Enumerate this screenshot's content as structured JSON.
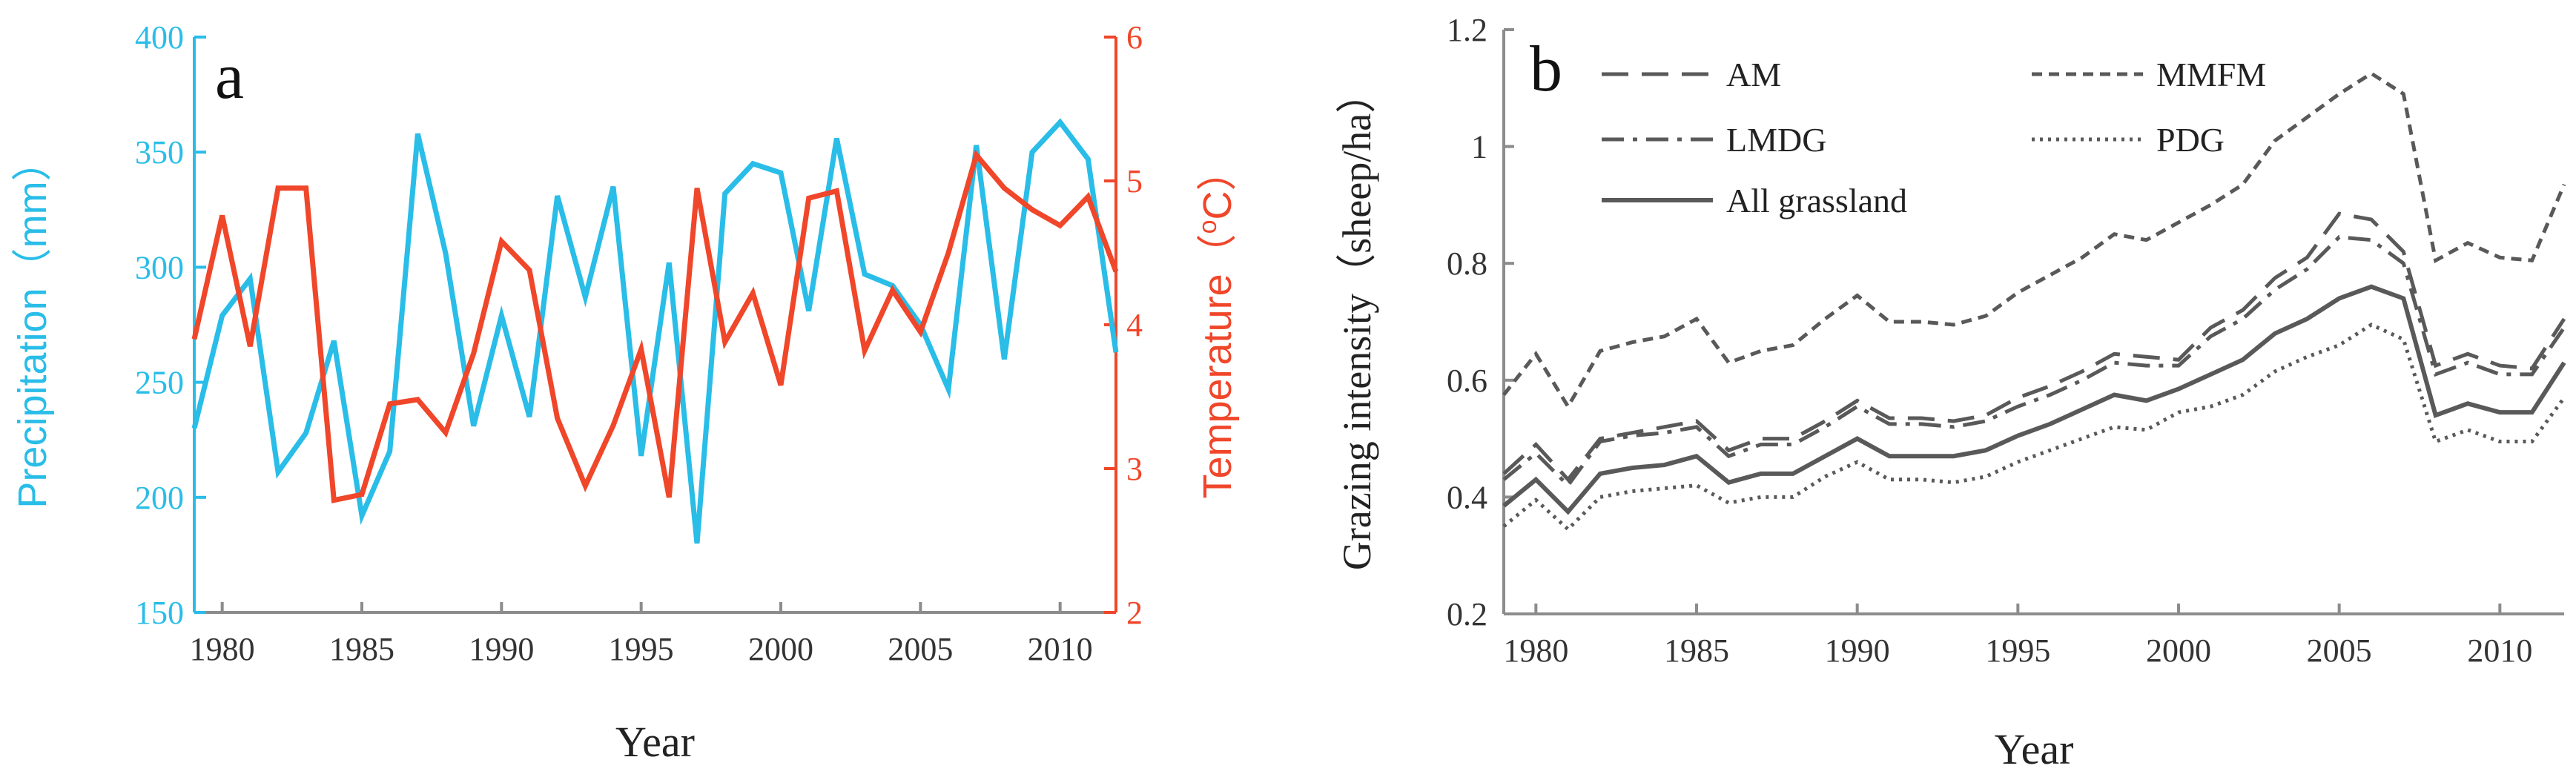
{
  "colors": {
    "precipitation": "#29bde8",
    "temperature": "#f0462a",
    "series_gray": "#595959",
    "axis_gray": "#8c8c8c"
  },
  "chart_data": [
    {
      "panel_label": "a",
      "type": "line",
      "xlabel": "Year",
      "xlim": [
        1979,
        2012
      ],
      "x_ticks": [
        1980,
        1985,
        1990,
        1995,
        2000,
        2005,
        2010
      ],
      "y_left": {
        "label": "Precipitation（mm）",
        "lim": [
          150,
          400
        ],
        "ticks": [
          150,
          200,
          250,
          300,
          350,
          400
        ]
      },
      "y_right": {
        "label": "Temperature（°C）",
        "label_parts": {
          "pre": "Temperature（",
          "sup": "o",
          "post": "C）"
        },
        "lim": [
          2,
          6
        ],
        "ticks": [
          2,
          3,
          4,
          5,
          6
        ]
      },
      "series": [
        {
          "name": "Precipitation",
          "axis": "left",
          "x": [
            1979,
            1980,
            1981,
            1982,
            1983,
            1984,
            1985,
            1986,
            1987,
            1988,
            1989,
            1990,
            1991,
            1992,
            1993,
            1994,
            1995,
            1996,
            1997,
            1998,
            1999,
            2000,
            2001,
            2002,
            2003,
            2004,
            2005,
            2006,
            2007,
            2008,
            2009,
            2010,
            2011,
            2012
          ],
          "values": [
            230,
            279,
            295,
            211,
            228,
            268,
            192,
            220,
            358,
            306,
            231,
            279,
            235,
            331,
            287,
            335,
            218,
            302,
            180,
            332,
            345,
            341,
            281,
            356,
            297,
            292,
            275,
            247,
            353,
            260,
            350,
            363,
            347,
            263
          ]
        },
        {
          "name": "Temperature",
          "axis": "right",
          "x": [
            1979,
            1980,
            1981,
            1982,
            1983,
            1984,
            1985,
            1986,
            1987,
            1988,
            1989,
            1990,
            1991,
            1992,
            1993,
            1994,
            1995,
            1996,
            1997,
            1998,
            1999,
            2000,
            2001,
            2002,
            2003,
            2004,
            2005,
            2006,
            2007,
            2008,
            2009,
            2010,
            2011,
            2012
          ],
          "values": [
            3.9,
            4.76,
            3.85,
            4.95,
            4.95,
            2.78,
            2.82,
            3.45,
            3.48,
            3.25,
            3.8,
            4.58,
            4.38,
            3.35,
            2.88,
            3.3,
            3.83,
            2.8,
            4.95,
            3.88,
            4.22,
            3.58,
            4.88,
            4.93,
            3.82,
            4.24,
            3.95,
            4.5,
            5.18,
            4.95,
            4.8,
            4.69,
            4.89,
            4.37
          ]
        }
      ]
    },
    {
      "panel_label": "b",
      "type": "line",
      "xlabel": "Year",
      "ylabel": "Grazing intensity（sheep/ha）",
      "xlim": [
        1979,
        2012
      ],
      "x_ticks": [
        1980,
        1985,
        1990,
        1995,
        2000,
        2005,
        2010
      ],
      "ylim": [
        0.2,
        1.2
      ],
      "y_ticks": [
        0.2,
        0.4,
        0.6,
        0.8,
        1,
        1.2
      ],
      "legend": {
        "placement": "top"
      },
      "series": [
        {
          "name": "AM",
          "dash": "long-dash",
          "x": [
            1979,
            1980,
            1981,
            1982,
            1983,
            1984,
            1985,
            1986,
            1987,
            1988,
            1989,
            1990,
            1991,
            1992,
            1993,
            1994,
            1995,
            1996,
            1997,
            1998,
            1999,
            2000,
            2001,
            2002,
            2003,
            2004,
            2005,
            2006,
            2007,
            2008,
            2009,
            2010,
            2011,
            2012
          ],
          "values": [
            0.44,
            0.49,
            0.43,
            0.5,
            0.51,
            0.52,
            0.53,
            0.48,
            0.5,
            0.5,
            0.53,
            0.565,
            0.535,
            0.535,
            0.53,
            0.54,
            0.57,
            0.59,
            0.615,
            0.645,
            0.64,
            0.635,
            0.69,
            0.72,
            0.775,
            0.81,
            0.885,
            0.875,
            0.82,
            0.625,
            0.645,
            0.625,
            0.62,
            0.705
          ]
        },
        {
          "name": "MMFM",
          "dash": "short-dash",
          "x": [
            1979,
            1980,
            1981,
            1982,
            1983,
            1984,
            1985,
            1986,
            1987,
            1988,
            1989,
            1990,
            1991,
            1992,
            1993,
            1994,
            1995,
            1996,
            1997,
            1998,
            1999,
            2000,
            2001,
            2002,
            2003,
            2004,
            2005,
            2006,
            2007,
            2008,
            2009,
            2010,
            2011,
            2012
          ],
          "values": [
            0.575,
            0.645,
            0.555,
            0.65,
            0.665,
            0.675,
            0.705,
            0.63,
            0.65,
            0.66,
            0.705,
            0.745,
            0.7,
            0.7,
            0.695,
            0.71,
            0.75,
            0.78,
            0.81,
            0.85,
            0.84,
            0.87,
            0.9,
            0.935,
            1.01,
            1.05,
            1.09,
            1.125,
            1.09,
            0.805,
            0.835,
            0.81,
            0.805,
            0.935
          ]
        },
        {
          "name": "LMDG",
          "dash": "dash-dot",
          "x": [
            1979,
            1980,
            1981,
            1982,
            1983,
            1984,
            1985,
            1986,
            1987,
            1988,
            1989,
            1990,
            1991,
            1992,
            1993,
            1994,
            1995,
            1996,
            1997,
            1998,
            1999,
            2000,
            2001,
            2002,
            2003,
            2004,
            2005,
            2006,
            2007,
            2008,
            2009,
            2010,
            2011,
            2012
          ],
          "values": [
            0.43,
            0.475,
            0.42,
            0.495,
            0.505,
            0.51,
            0.52,
            0.47,
            0.49,
            0.49,
            0.52,
            0.555,
            0.525,
            0.525,
            0.52,
            0.53,
            0.555,
            0.575,
            0.6,
            0.63,
            0.625,
            0.625,
            0.675,
            0.705,
            0.755,
            0.79,
            0.845,
            0.84,
            0.8,
            0.61,
            0.63,
            0.61,
            0.61,
            0.69
          ]
        },
        {
          "name": "PDG",
          "dash": "dotted",
          "x": [
            1979,
            1980,
            1981,
            1982,
            1983,
            1984,
            1985,
            1986,
            1987,
            1988,
            1989,
            1990,
            1991,
            1992,
            1993,
            1994,
            1995,
            1996,
            1997,
            1998,
            1999,
            2000,
            2001,
            2002,
            2003,
            2004,
            2005,
            2006,
            2007,
            2008,
            2009,
            2010,
            2011,
            2012
          ],
          "values": [
            0.35,
            0.395,
            0.345,
            0.4,
            0.41,
            0.415,
            0.42,
            0.39,
            0.4,
            0.4,
            0.435,
            0.46,
            0.43,
            0.43,
            0.425,
            0.435,
            0.46,
            0.48,
            0.5,
            0.52,
            0.515,
            0.545,
            0.555,
            0.575,
            0.615,
            0.64,
            0.66,
            0.695,
            0.67,
            0.495,
            0.515,
            0.495,
            0.495,
            0.57
          ]
        },
        {
          "name": "All grassland",
          "dash": "solid",
          "x": [
            1979,
            1980,
            1981,
            1982,
            1983,
            1984,
            1985,
            1986,
            1987,
            1988,
            1989,
            1990,
            1991,
            1992,
            1993,
            1994,
            1995,
            1996,
            1997,
            1998,
            1999,
            2000,
            2001,
            2002,
            2003,
            2004,
            2005,
            2006,
            2007,
            2008,
            2009,
            2010,
            2011,
            2012
          ],
          "values": [
            0.385,
            0.43,
            0.375,
            0.44,
            0.45,
            0.455,
            0.47,
            0.425,
            0.44,
            0.44,
            0.47,
            0.5,
            0.47,
            0.47,
            0.47,
            0.48,
            0.505,
            0.525,
            0.55,
            0.575,
            0.565,
            0.585,
            0.61,
            0.635,
            0.68,
            0.705,
            0.74,
            0.76,
            0.74,
            0.54,
            0.56,
            0.545,
            0.545,
            0.63
          ]
        }
      ]
    }
  ]
}
